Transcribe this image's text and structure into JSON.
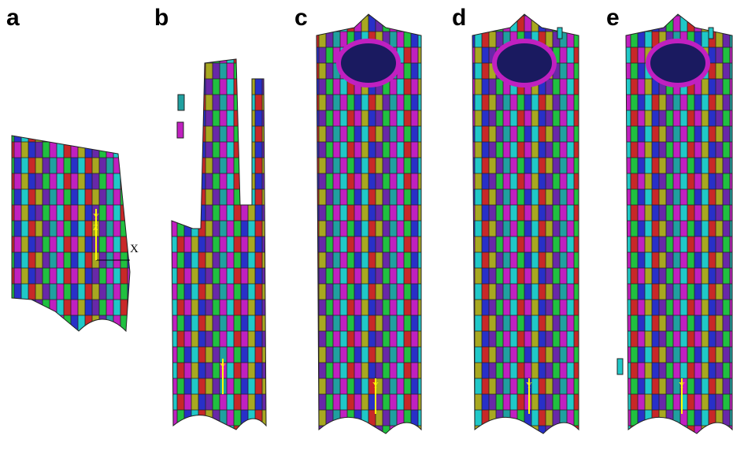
{
  "panels": [
    {
      "label": "a"
    },
    {
      "label": "b"
    },
    {
      "label": "c"
    },
    {
      "label": "d"
    },
    {
      "label": "e"
    }
  ],
  "axes": {
    "x": "X",
    "y": "Y",
    "z": "Z"
  }
}
